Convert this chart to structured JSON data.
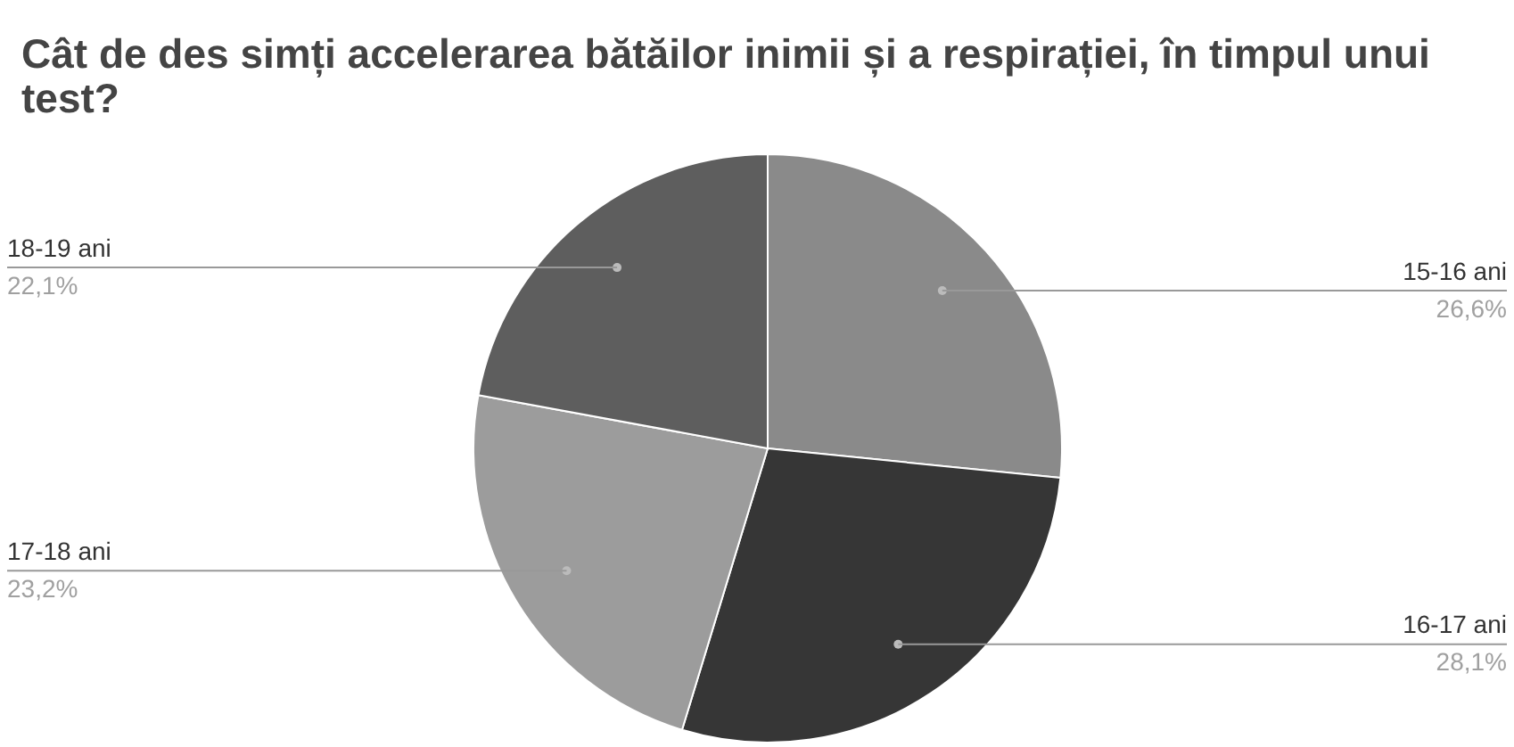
{
  "chart_data": {
    "type": "pie",
    "title": "Cât de des simți accelerarea bătăilor inimii și a respirației, în timpul unui test?",
    "categories": [
      "15-16 ani",
      "16-17 ani",
      "17-18 ani",
      "18-19 ani"
    ],
    "values": [
      26.6,
      28.1,
      23.2,
      22.1
    ],
    "colors": [
      "#8a8a8a",
      "#363636",
      "#9c9c9c",
      "#5e5e5e"
    ],
    "value_labels": [
      "26,6%",
      "28,1%",
      "23,2%",
      "22,1%"
    ],
    "legend": false
  }
}
